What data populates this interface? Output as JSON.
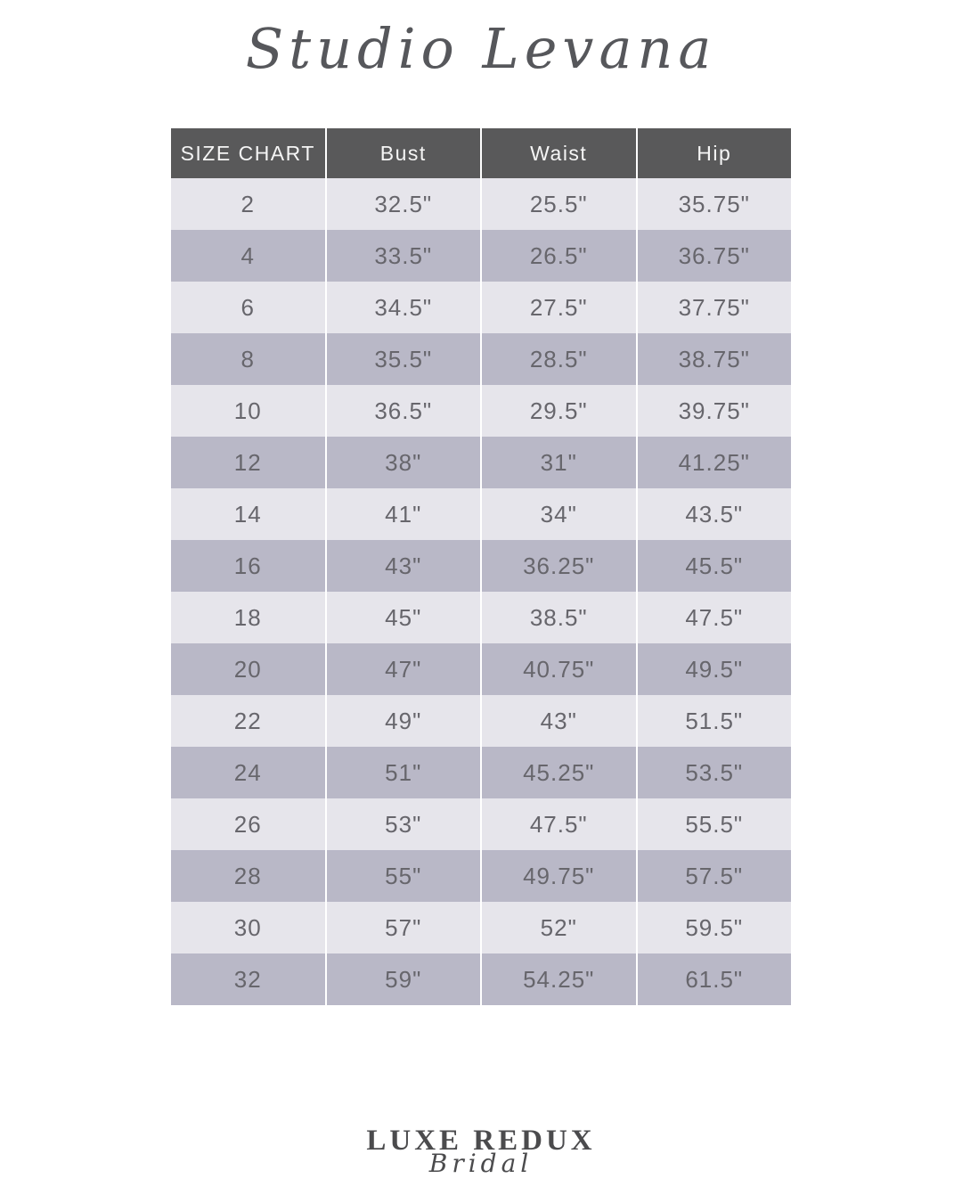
{
  "brand": {
    "title": "Studio Levana"
  },
  "table": {
    "headers": [
      "SIZE CHART",
      "Bust",
      "Waist",
      "Hip"
    ],
    "rows": [
      [
        "2",
        "32.5\"",
        "25.5\"",
        "35.75\""
      ],
      [
        "4",
        "33.5\"",
        "26.5\"",
        "36.75\""
      ],
      [
        "6",
        "34.5\"",
        "27.5\"",
        "37.75\""
      ],
      [
        "8",
        "35.5\"",
        "28.5\"",
        "38.75\""
      ],
      [
        "10",
        "36.5\"",
        "29.5\"",
        "39.75\""
      ],
      [
        "12",
        "38\"",
        "31\"",
        "41.25\""
      ],
      [
        "14",
        "41\"",
        "34\"",
        "43.5\""
      ],
      [
        "16",
        "43\"",
        "36.25\"",
        "45.5\""
      ],
      [
        "18",
        "45\"",
        "38.5\"",
        "47.5\""
      ],
      [
        "20",
        "47\"",
        "40.75\"",
        "49.5\""
      ],
      [
        "22",
        "49\"",
        "43\"",
        "51.5\""
      ],
      [
        "24",
        "51\"",
        "45.25\"",
        "53.5\""
      ],
      [
        "26",
        "53\"",
        "47.5\"",
        "55.5\""
      ],
      [
        "28",
        "55\"",
        "49.75\"",
        "57.5\""
      ],
      [
        "30",
        "57\"",
        "52\"",
        "59.5\""
      ],
      [
        "32",
        "59\"",
        "54.25\"",
        "61.5\""
      ]
    ]
  },
  "footer": {
    "logo_main": "LUXE REDUX",
    "logo_sub": "Bridal"
  },
  "colors": {
    "header_bg": "#59595a",
    "row_light": "#e6e5eb",
    "row_dark": "#b9b8c7",
    "cell_text": "#67666c",
    "header_text": "#f5f5f5",
    "brand_text": "#56575b",
    "footer_text": "#4b4b4d"
  }
}
